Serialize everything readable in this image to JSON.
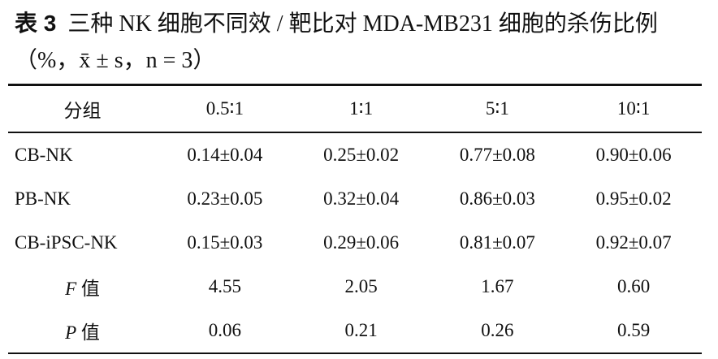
{
  "caption": {
    "label": "表 3",
    "title": "三种 NK 细胞不同效 / 靶比对 MDA-MB231 细胞的杀伤比例（%，x̄ ± s，n = 3）"
  },
  "table": {
    "header": [
      "分组",
      "0.5∶1",
      "1∶1",
      "5∶1",
      "10∶1"
    ],
    "rows": [
      [
        "CB-NK",
        "0.14±0.04",
        "0.25±0.02",
        "0.77±0.08",
        "0.90±0.06"
      ],
      [
        "PB-NK",
        "0.23±0.05",
        "0.32±0.04",
        "0.86±0.03",
        "0.95±0.02"
      ],
      [
        "CB-iPSC-NK",
        "0.15±0.03",
        "0.29±0.06",
        "0.81±0.07",
        "0.92±0.07"
      ]
    ],
    "stats": [
      {
        "symbol": "F",
        "suffix": "值",
        "values": [
          "4.55",
          "2.05",
          "1.67",
          "0.60"
        ]
      },
      {
        "symbol": "P",
        "suffix": "值",
        "values": [
          "0.06",
          "0.21",
          "0.26",
          "0.59"
        ]
      }
    ]
  }
}
